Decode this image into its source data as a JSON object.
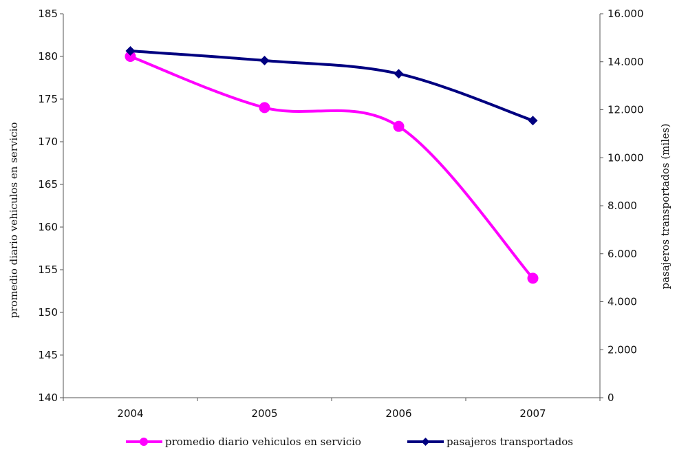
{
  "chart_data": {
    "type": "line",
    "categories": [
      "2004",
      "2005",
      "2006",
      "2007"
    ],
    "y_left": {
      "label": "promedio diario vehiculos en servicio",
      "lim": [
        140,
        185
      ],
      "ticks": [
        "140",
        "145",
        "150",
        "155",
        "160",
        "165",
        "170",
        "175",
        "180",
        "185"
      ]
    },
    "y_right": {
      "label": "pasajeros transportados (miles)",
      "lim": [
        0,
        16000
      ],
      "ticks": [
        "0",
        "2.000",
        "4.000",
        "6.000",
        "8.000",
        "10.000",
        "12.000",
        "14.000",
        "16.000"
      ]
    },
    "series": [
      {
        "name": "promedio diario vehiculos en servicio",
        "axis": "left",
        "color": "#ff00ff",
        "marker": "circle",
        "values": [
          180,
          174,
          171.8,
          154
        ]
      },
      {
        "name": "pasajeros transportados",
        "axis": "right",
        "color": "#000080",
        "marker": "diamond",
        "values": [
          14450,
          14050,
          13500,
          11550
        ]
      }
    ],
    "grid": false,
    "legend_position": "bottom"
  }
}
